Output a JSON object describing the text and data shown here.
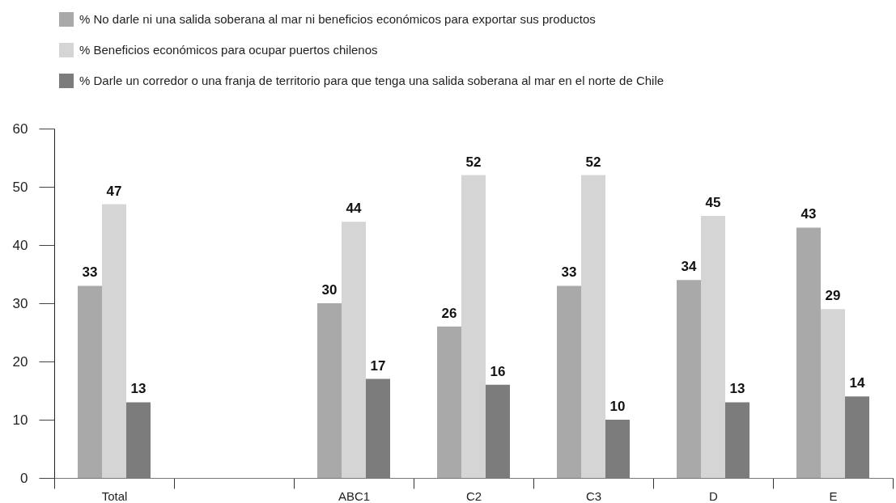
{
  "chart_data": {
    "type": "bar",
    "categories": [
      "Total",
      null,
      "ABC1",
      "C2",
      "C3",
      "D",
      "E"
    ],
    "series": [
      {
        "name": "% No darle ni una salida soberana al mar ni beneficios económicos para exportar sus productos",
        "color": "#a9a9a9",
        "values": [
          33,
          null,
          30,
          26,
          33,
          34,
          43
        ]
      },
      {
        "name": "% Beneficios económicos para ocupar puertos chilenos",
        "color": "#d5d5d5",
        "values": [
          47,
          null,
          44,
          52,
          52,
          45,
          29
        ]
      },
      {
        "name": "% Darle un corredor o una franja de territorio para que tenga una salida soberana al mar en el norte de Chile",
        "color": "#7c7c7c",
        "values": [
          13,
          null,
          17,
          16,
          10,
          13,
          14
        ]
      }
    ],
    "ylim": [
      0,
      60
    ],
    "yticks": [
      0,
      10,
      20,
      30,
      40,
      50,
      60
    ],
    "data_labels": true,
    "legend": "top left"
  }
}
